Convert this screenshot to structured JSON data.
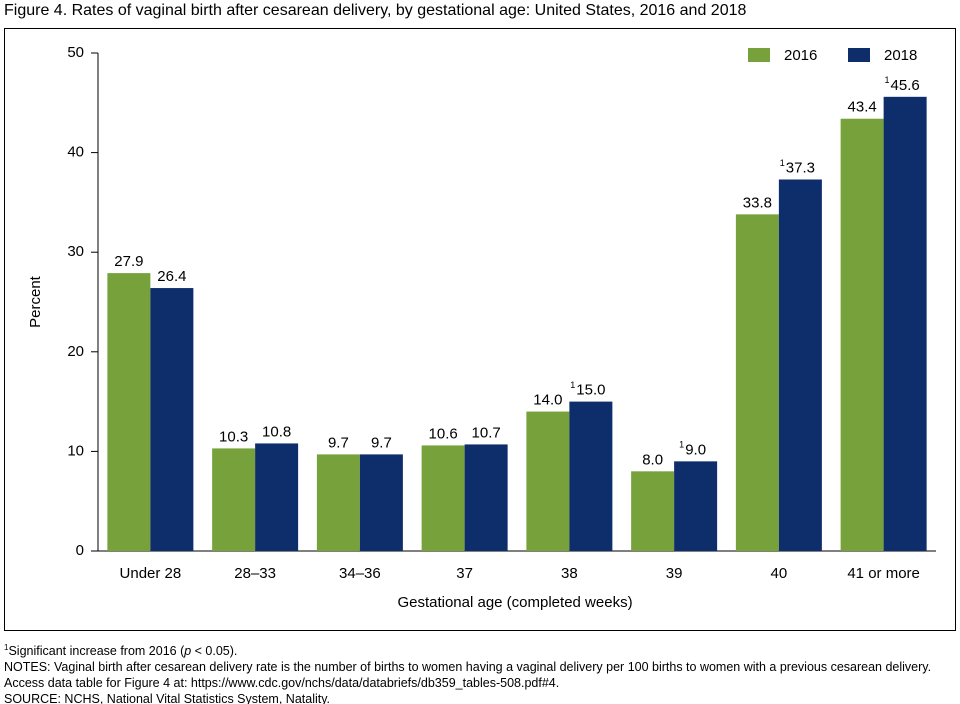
{
  "chart_data": {
    "type": "bar",
    "title": "Figure 4. Rates of vaginal birth after cesarean delivery, by gestational age: United States, 2016 and 2018",
    "categories": [
      "Under 28",
      "28–33",
      "34–36",
      "37",
      "38",
      "39",
      "40",
      "41 or more"
    ],
    "series": [
      {
        "name": "2016",
        "color": "#77a23b",
        "values": [
          27.9,
          10.3,
          9.7,
          10.6,
          14.0,
          8.0,
          33.8,
          43.4
        ],
        "value_labels": [
          "27.9",
          "10.3",
          "9.7",
          "10.6",
          "14.0",
          "8.0",
          "33.8",
          "43.4"
        ],
        "significant": [
          false,
          false,
          false,
          false,
          false,
          false,
          false,
          false
        ]
      },
      {
        "name": "2018",
        "color": "#0e2d6b",
        "values": [
          26.4,
          10.8,
          9.7,
          10.7,
          15.0,
          9.0,
          37.3,
          45.6
        ],
        "value_labels": [
          "26.4",
          "10.8",
          "9.7",
          "10.7",
          "15.0",
          "9.0",
          "37.3",
          "45.6"
        ],
        "significant": [
          false,
          false,
          false,
          false,
          true,
          true,
          true,
          true
        ]
      }
    ],
    "footnote_marker": "1",
    "ylabel": "Percent",
    "xlabel": "Gestational age (completed weeks)",
    "ylim": [
      0,
      50
    ],
    "yticks": [
      0,
      10,
      20,
      30,
      40,
      50
    ],
    "grid": false,
    "legend": "upper right"
  },
  "footer": {
    "footnote": {
      "before": "Significant increase from 2016 (",
      "italic": "p",
      "after": " < 0.05)."
    },
    "notes": "NOTES: Vaginal birth after cesarean delivery rate is the number of births to women having a vaginal delivery per 100 births to women with a previous cesarean delivery. Access data table for Figure 4 at: https://www.cdc.gov/nchs/data/databriefs/db359_tables-508.pdf#4.",
    "source": "SOURCE: NCHS, National Vital Statistics System, Natality."
  }
}
